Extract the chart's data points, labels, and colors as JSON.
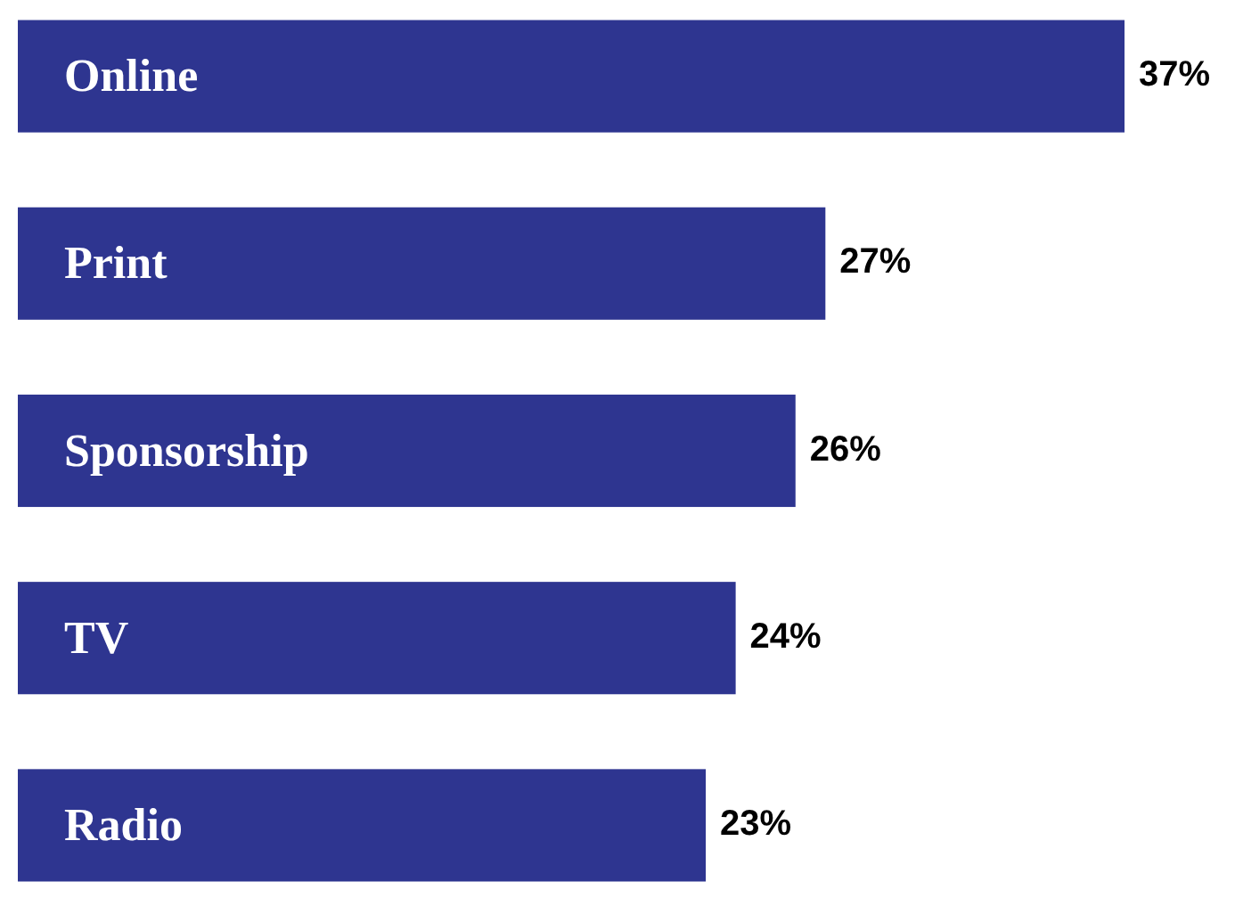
{
  "chart_data": {
    "type": "bar",
    "orientation": "horizontal",
    "categories": [
      "Online",
      "Print",
      "Sponsorship",
      "TV",
      "Radio"
    ],
    "values": [
      37,
      27,
      26,
      24,
      23
    ],
    "value_labels": [
      "37%",
      "27%",
      "26%",
      "24%",
      "23%"
    ],
    "color": "#2e3590"
  }
}
